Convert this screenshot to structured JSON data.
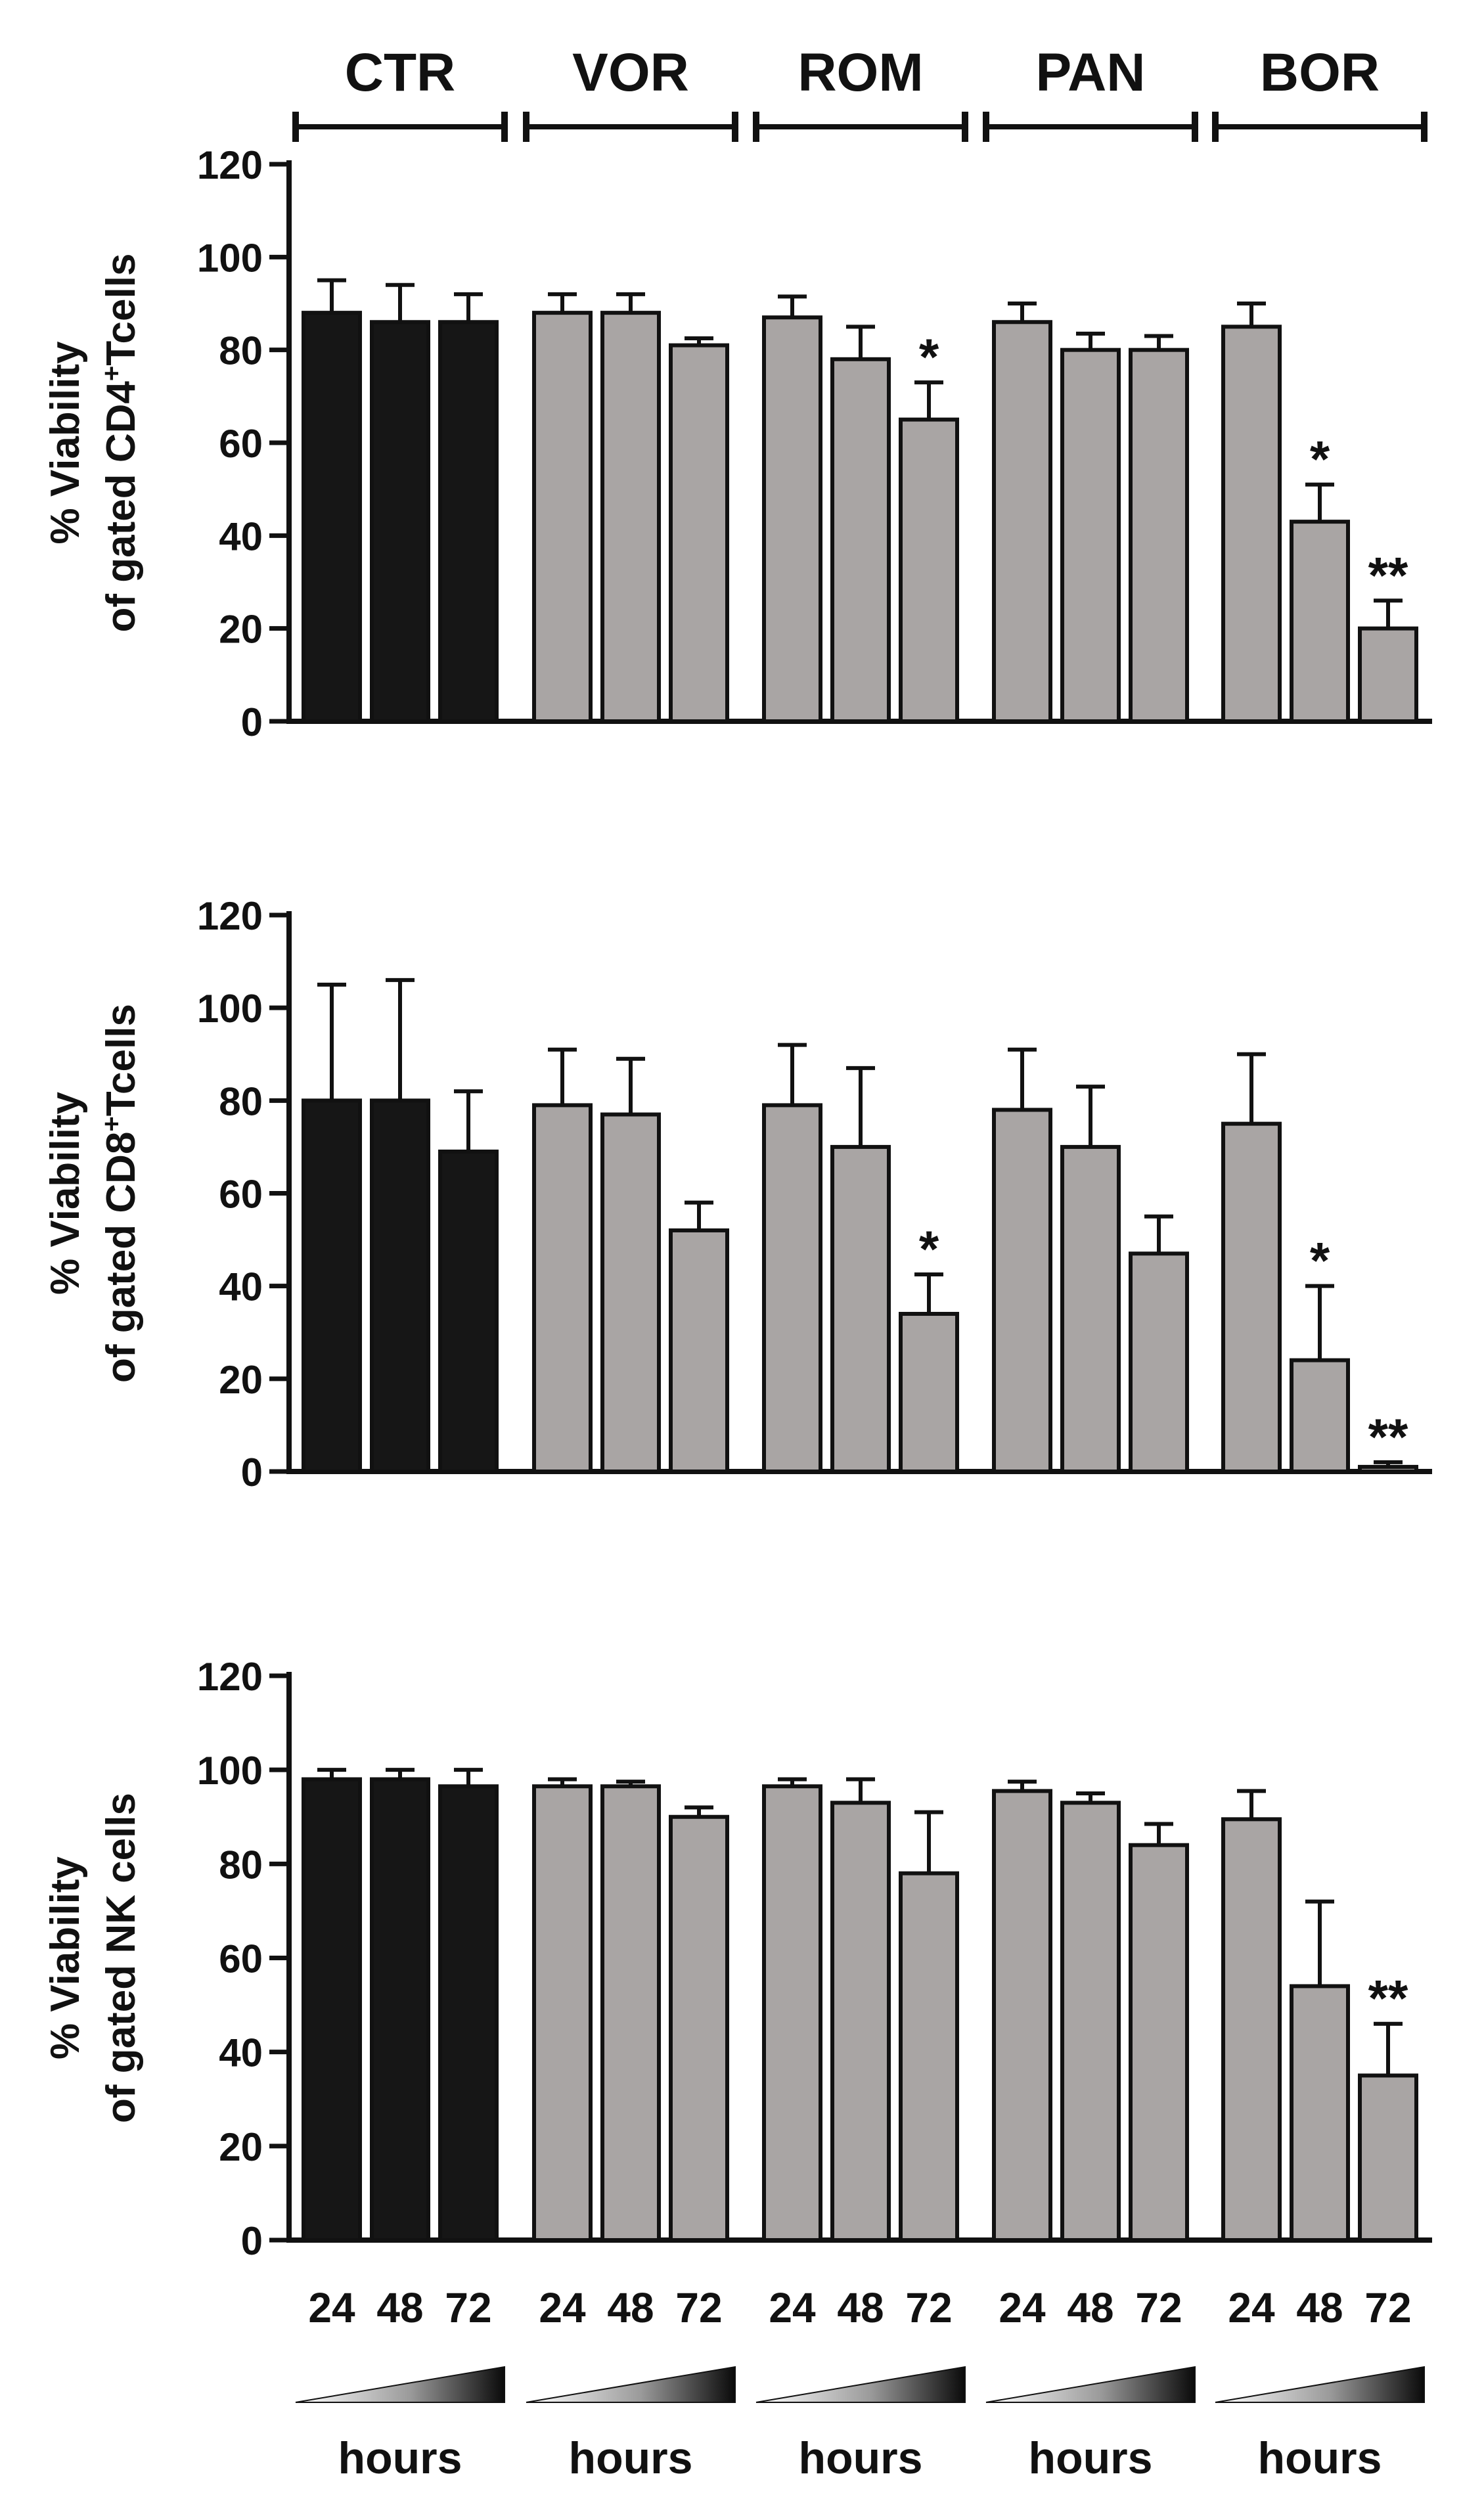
{
  "groups": [
    "CTR",
    "VOR",
    "ROM",
    "PAN",
    "BOR"
  ],
  "time_labels": [
    "24",
    "48",
    "72"
  ],
  "time_axis_label": "hours",
  "colors": {
    "control": "#161616",
    "treatment": "#a9a5a4",
    "edge": "#111111"
  },
  "chart_data": [
    {
      "type": "bar",
      "ylabel": [
        "% Viability",
        "of gated CD4",
        "+",
        "Tcells"
      ],
      "ylim": [
        0,
        120
      ],
      "yticks": [
        0,
        20,
        40,
        60,
        80,
        100,
        120
      ],
      "categories": [
        "CTR",
        "VOR",
        "ROM",
        "PAN",
        "BOR"
      ],
      "series_names": [
        "24",
        "48",
        "72"
      ],
      "values": [
        [
          88,
          86,
          86
        ],
        [
          88,
          88,
          81
        ],
        [
          87,
          78,
          65
        ],
        [
          86,
          80,
          80
        ],
        [
          85,
          43,
          20
        ]
      ],
      "errors": [
        [
          7,
          8,
          6
        ],
        [
          4,
          4,
          1.5
        ],
        [
          4.5,
          7,
          8
        ],
        [
          4,
          3.5,
          3
        ],
        [
          5,
          8,
          6
        ]
      ],
      "annotations": [
        [
          "",
          "",
          ""
        ],
        [
          "",
          "",
          ""
        ],
        [
          "",
          "",
          "*"
        ],
        [
          "",
          "",
          ""
        ],
        [
          "",
          "*",
          "**"
        ]
      ]
    },
    {
      "type": "bar",
      "ylabel": [
        "% Viability",
        "of gated CD8",
        "+",
        "Tcells"
      ],
      "ylim": [
        0,
        120
      ],
      "yticks": [
        0,
        20,
        40,
        60,
        80,
        100,
        120
      ],
      "categories": [
        "CTR",
        "VOR",
        "ROM",
        "PAN",
        "BOR"
      ],
      "series_names": [
        "24",
        "48",
        "72"
      ],
      "values": [
        [
          80,
          80,
          69
        ],
        [
          79,
          77,
          52
        ],
        [
          79,
          70,
          34
        ],
        [
          78,
          70,
          47
        ],
        [
          75,
          24,
          1
        ]
      ],
      "errors": [
        [
          25,
          26,
          13
        ],
        [
          12,
          12,
          6
        ],
        [
          13,
          17,
          8.5
        ],
        [
          13,
          13,
          8
        ],
        [
          15,
          16,
          1
        ]
      ],
      "annotations": [
        [
          "",
          "",
          ""
        ],
        [
          "",
          "",
          ""
        ],
        [
          "",
          "",
          "*"
        ],
        [
          "",
          "",
          ""
        ],
        [
          "",
          "*",
          "**"
        ]
      ]
    },
    {
      "type": "bar",
      "ylabel": [
        "% Viability",
        "of gated NK cells"
      ],
      "ylim": [
        0,
        120
      ],
      "yticks": [
        0,
        20,
        40,
        60,
        80,
        100,
        120
      ],
      "categories": [
        "CTR",
        "VOR",
        "ROM",
        "PAN",
        "BOR"
      ],
      "series_names": [
        "24",
        "48",
        "72"
      ],
      "values": [
        [
          98,
          98,
          96.5
        ],
        [
          96.5,
          96.5,
          90
        ],
        [
          96.5,
          93,
          78
        ],
        [
          95.5,
          93,
          84
        ],
        [
          89.5,
          54,
          35
        ]
      ],
      "errors": [
        [
          2,
          2,
          3.5
        ],
        [
          1.5,
          1,
          2
        ],
        [
          1.5,
          5,
          13
        ],
        [
          2,
          2,
          4.5
        ],
        [
          6,
          18,
          11
        ]
      ],
      "annotations": [
        [
          "",
          "",
          ""
        ],
        [
          "",
          "",
          ""
        ],
        [
          "",
          "",
          ""
        ],
        [
          "",
          "",
          ""
        ],
        [
          "",
          "",
          "**"
        ]
      ]
    }
  ]
}
